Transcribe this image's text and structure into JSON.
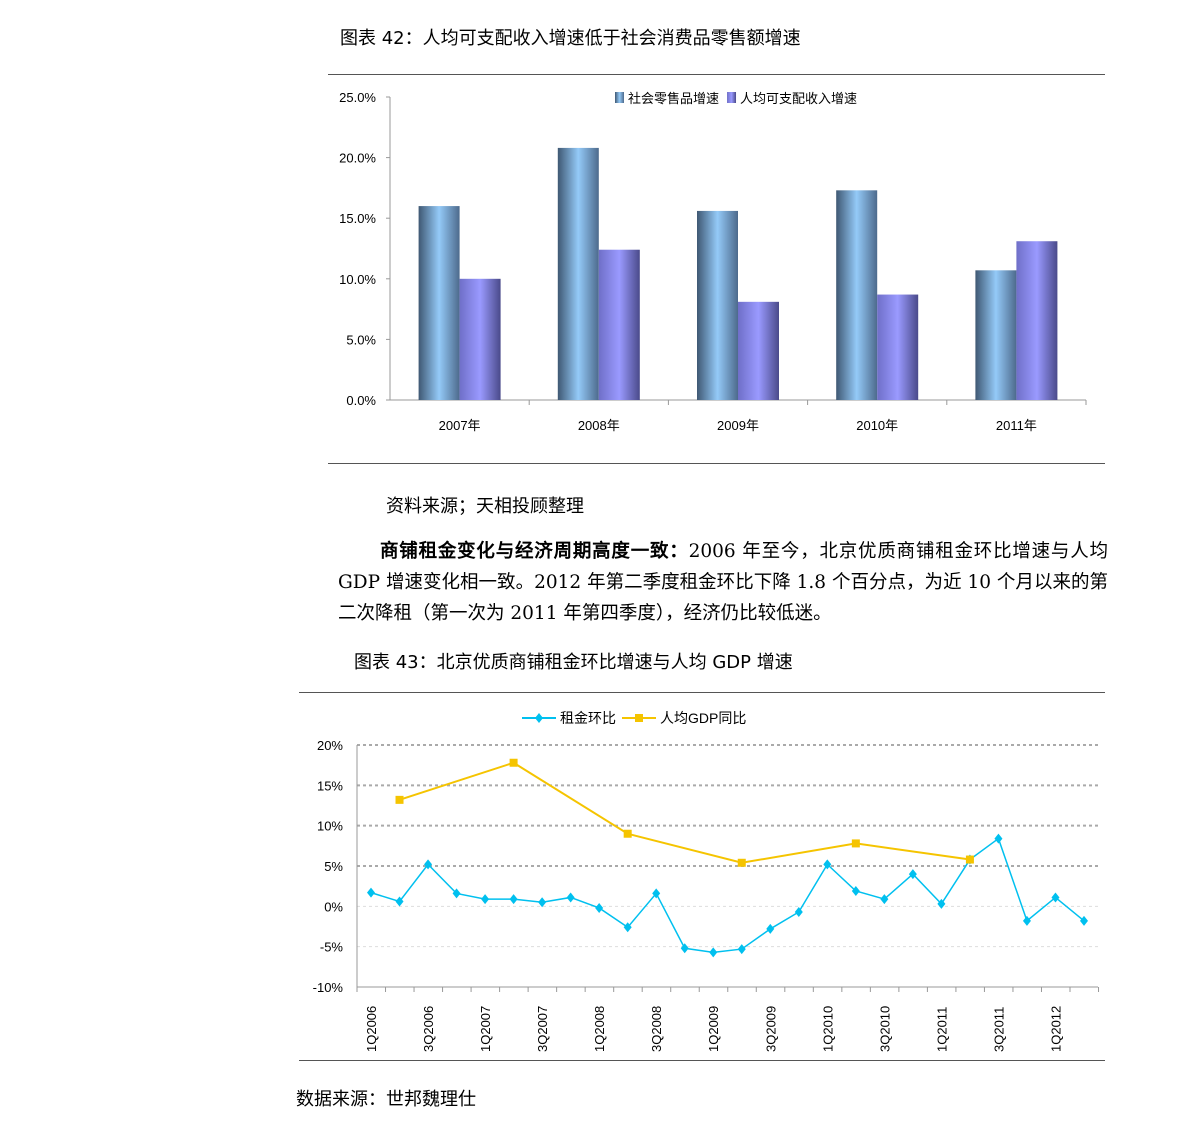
{
  "figure42": {
    "caption": "图表 42：人均可支配收入增速低于社会消费品零售额增速",
    "source": "资料来源；天相投顾整理"
  },
  "paragraph": {
    "lead": "商铺租金变化与经济周期高度一致：",
    "body": "2006 年至今，北京优质商铺租金环比增速与人均 GDP 增速变化相一致。2012 年第二季度租金环比下降 1.8 个百分点，为近 10 个月以来的第二次降租（第一次为 2011 年第四季度），经济仍比较低迷。"
  },
  "figure43": {
    "caption": "图表 43：北京优质商铺租金环比增速与人均 GDP 增速",
    "source": "数据来源：世邦魏理仕"
  },
  "chart_data": [
    {
      "type": "bar",
      "categories": [
        "2007年",
        "2008年",
        "2009年",
        "2010年",
        "2011年"
      ],
      "series": [
        {
          "name": "社会零售品增速",
          "values": [
            16.0,
            20.8,
            15.6,
            17.3,
            10.7
          ],
          "color": "#8fc6f5"
        },
        {
          "name": "人均可支配收入增速",
          "values": [
            10.0,
            12.4,
            8.1,
            8.7,
            13.1
          ],
          "color": "#9999ff"
        }
      ],
      "ylim": [
        0,
        25
      ],
      "yticks": [
        "0.0%",
        "5.0%",
        "10.0%",
        "15.0%",
        "20.0%",
        "25.0%"
      ],
      "legend": "top-center",
      "xlabel": "",
      "ylabel": ""
    },
    {
      "type": "line",
      "categories": [
        "1Q2006",
        "2Q2006",
        "3Q2006",
        "4Q2006",
        "1Q2007",
        "2Q2007",
        "3Q2007",
        "4Q2007",
        "1Q2008",
        "2Q2008",
        "3Q2008",
        "4Q2008",
        "1Q2009",
        "2Q2009",
        "3Q2009",
        "4Q2009",
        "1Q2010",
        "2Q2010",
        "3Q2010",
        "4Q2010",
        "1Q2011",
        "2Q2011",
        "3Q2011",
        "4Q2011",
        "1Q2012",
        "2Q2012"
      ],
      "tick_labels": [
        "1Q2006",
        "3Q2006",
        "1Q2007",
        "3Q2007",
        "1Q2008",
        "3Q2008",
        "1Q2009",
        "3Q2009",
        "1Q2010",
        "3Q2010",
        "1Q2011",
        "3Q2011",
        "1Q2012"
      ],
      "series": [
        {
          "name": "租金环比",
          "color": "#00c0ef",
          "values": [
            1.7,
            0.6,
            5.2,
            1.6,
            0.9,
            0.9,
            0.5,
            1.1,
            -0.2,
            -2.6,
            1.6,
            -5.2,
            -5.7,
            -5.3,
            -2.8,
            -0.7,
            5.2,
            1.9,
            0.9,
            4.0,
            0.3,
            5.8,
            8.4,
            -1.8,
            1.1,
            -1.8
          ]
        },
        {
          "name": "人均GDP同比",
          "color": "#f5c400",
          "values": [
            null,
            13.2,
            null,
            null,
            null,
            17.8,
            null,
            null,
            null,
            9.0,
            null,
            null,
            null,
            5.4,
            null,
            null,
            null,
            7.8,
            null,
            null,
            null,
            5.8,
            null,
            null,
            null,
            null
          ]
        }
      ],
      "ylim": [
        -10,
        20
      ],
      "yticks": [
        "-10%",
        "-5%",
        "0%",
        "5%",
        "10%",
        "15%",
        "20%"
      ],
      "legend": "top-center",
      "grid": true,
      "xlabel": "",
      "ylabel": ""
    }
  ]
}
